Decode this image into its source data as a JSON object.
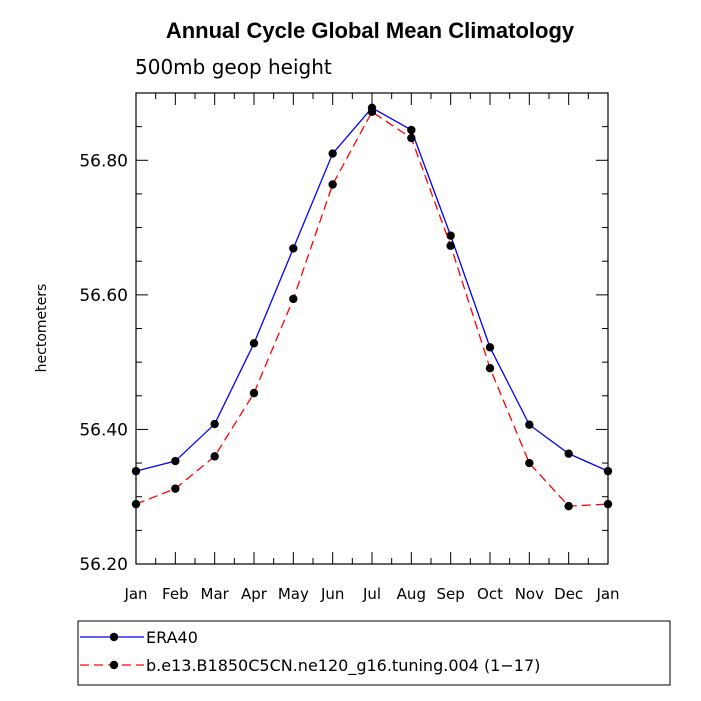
{
  "chart_data": {
    "type": "line",
    "title": "Annual Cycle Global Mean Climatology",
    "subtitle": "500mb geop height",
    "xlabel": "",
    "ylabel": "hectometers",
    "categories": [
      "Jan",
      "Feb",
      "Mar",
      "Apr",
      "May",
      "Jun",
      "Jul",
      "Aug",
      "Sep",
      "Oct",
      "Nov",
      "Dec",
      "Jan"
    ],
    "ylim": [
      56.2,
      56.9
    ],
    "yticks": [
      56.2,
      56.4,
      56.6,
      56.8
    ],
    "ytick_labels": [
      "56.20",
      "56.40",
      "56.60",
      "56.80"
    ],
    "series": [
      {
        "name": "ERA40",
        "color": "#0000ff",
        "dash": "solid",
        "marker": "circle",
        "values": [
          56.338,
          56.353,
          56.408,
          56.528,
          56.669,
          56.81,
          56.878,
          56.845,
          56.688,
          56.522,
          56.407,
          56.364,
          56.338
        ]
      },
      {
        "name": "b.e13.B1850C5CN.ne120_g16.tuning.004 (1−17)",
        "color": "#ff0000",
        "dash": "dashed",
        "marker": "circle",
        "values": [
          56.289,
          56.312,
          56.36,
          56.454,
          56.594,
          56.764,
          56.872,
          56.833,
          56.673,
          56.491,
          56.35,
          56.286,
          56.289
        ]
      }
    ],
    "grid": false,
    "legend_position": "bottom"
  }
}
